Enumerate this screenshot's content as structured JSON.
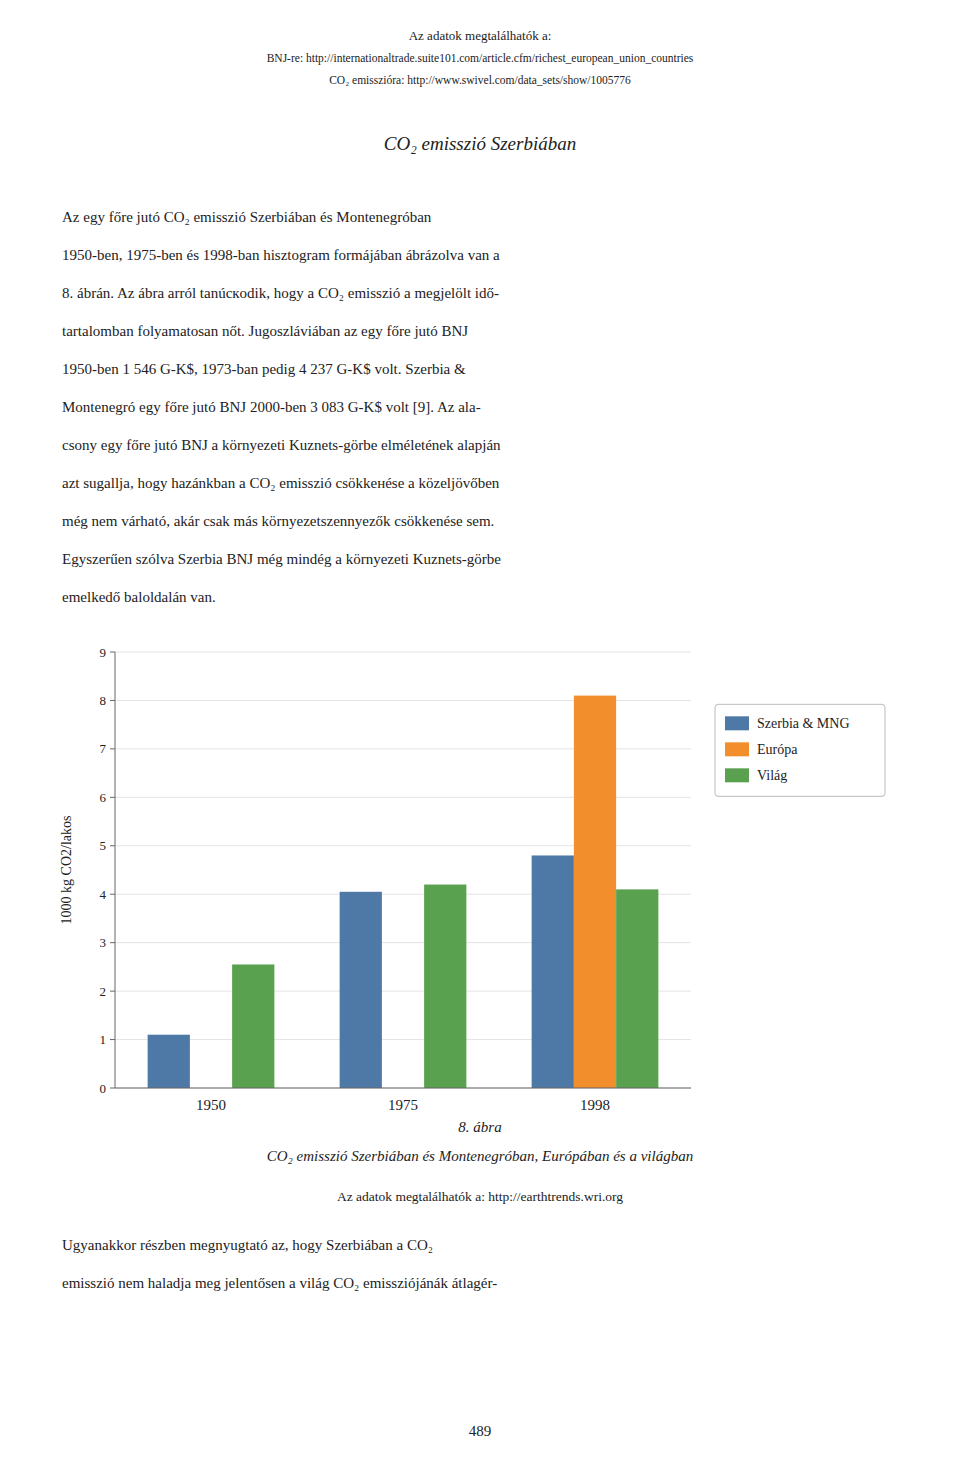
{
  "header_lines": [
    "Az adatok megtalálhatók a:",
    "BNJ-re: http://internationaltrade.suite101.com/article.cfm/richest_european_union_countries",
    "CO₂ emisszióra: http://www.swivel.com/data_sets/show/1005776"
  ],
  "section_title": "CO₂ emisszió Szerbiában",
  "para1_lines": [
    "Az egy főre jutó CO₂ emisszió Szerbiában és Montenegróban",
    "1950-ben, 1975-ben és 1998-ban hisztogram formájában ábrázolva van a",
    "8. ábrán. Az ábra arról tanúскodik, hogy a CO₂ emisszió a megjelölt idő-",
    "tartalomban folyamatosan nőt. Jugoszláviában az egy főre jutó BNJ",
    "1950-ben 1 546 G-K$, 1973-ban pedig 4 237 G-K$ volt. Szerbia &",
    "Montenegró egy főre jutó BNJ 2000-ben 3 083 G-K$ volt [9]. Az ala-",
    "csony egy főre jutó BNJ a környezeti Kuznets-görbe elméletének alapján",
    "azt sugallja, hogy hazánkban a CO₂ emisszió csökkенése a közeljövőben",
    "még nem várható, akár csak más környezetszennyezők csökkenése sem.",
    "Egyszerűen szólva Szerbia BNJ még mindég a környezeti Kuznets-görbe",
    "emelkedő baloldalán van."
  ],
  "chart_data": {
    "type": "bar",
    "categories": [
      "1950",
      "1975",
      "1998"
    ],
    "series": [
      {
        "name": "Szerbia & MNG",
        "values": [
          1.1,
          4.05,
          4.8
        ]
      },
      {
        "name": "Európa",
        "values": [
          0.0,
          0.0,
          8.1
        ]
      },
      {
        "name": "Világ",
        "values": [
          2.55,
          4.2,
          4.1
        ]
      }
    ],
    "ylabel": "1000 kg CO2/lakos",
    "ylim": [
      0,
      9
    ],
    "yticks": [
      0,
      1,
      2,
      3,
      4,
      5,
      6,
      7,
      8,
      9
    ],
    "grid": true,
    "legend": "right"
  },
  "caption_num": "8. ábra",
  "caption_text": "CO₂ emisszió Szerbiában és Montenegróban, Európában és a világban",
  "source_text": "Az adatok megtalálhatók a: http://earthtrends.wri.org",
  "para2_lines": [
    "Ugyanakkor részben megnyugtató az, hogy Szerbiában a CO₂",
    "emisszió nem haladja meg jelentősen a világ CO₂ emissziójánák átlagér-"
  ],
  "page_num": "489"
}
